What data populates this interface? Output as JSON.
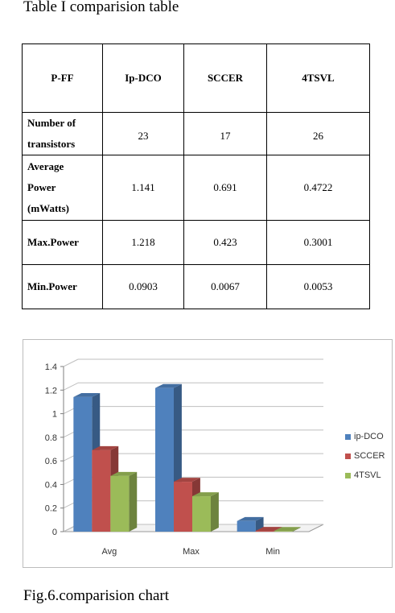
{
  "caption_top": "Table I comparision table",
  "table": {
    "headers": [
      "P-FF",
      "Ip-DCO",
      "SCCER",
      "4TSVL"
    ],
    "rows": [
      {
        "label_lines": [
          "Number of",
          "transistors"
        ],
        "values": [
          "23",
          "17",
          "26"
        ]
      },
      {
        "label_lines": [
          "Average",
          "Power",
          "(mWatts)"
        ],
        "values": [
          "1.141",
          "0.691",
          "0.4722"
        ]
      },
      {
        "label_lines": [
          "Max.Power"
        ],
        "values": [
          "1.218",
          "0.423",
          "0.3001"
        ]
      },
      {
        "label_lines": [
          "Min.Power"
        ],
        "values": [
          "0.0903",
          "0.0067",
          "0.0053"
        ]
      }
    ]
  },
  "caption_bottom": "Fig.6.comparision chart",
  "chart_data": {
    "type": "bar",
    "categories": [
      "Avg",
      "Max",
      "Min"
    ],
    "series": [
      {
        "name": "ip-DCO",
        "values": [
          1.141,
          1.218,
          0.0903
        ],
        "color": "#4f81bd"
      },
      {
        "name": "SCCER",
        "values": [
          0.691,
          0.423,
          0.0067
        ],
        "color": "#c0504d"
      },
      {
        "name": "4TSVL",
        "values": [
          0.4722,
          0.3001,
          0.0053
        ],
        "color": "#9bbb59"
      }
    ],
    "yticks": [
      "0",
      "0.2",
      "0.4",
      "0.6",
      "0.8",
      "1",
      "1.2",
      "1.4"
    ],
    "ylim": [
      0,
      1.4
    ],
    "grid": true,
    "legend": "right",
    "style": "3d"
  }
}
